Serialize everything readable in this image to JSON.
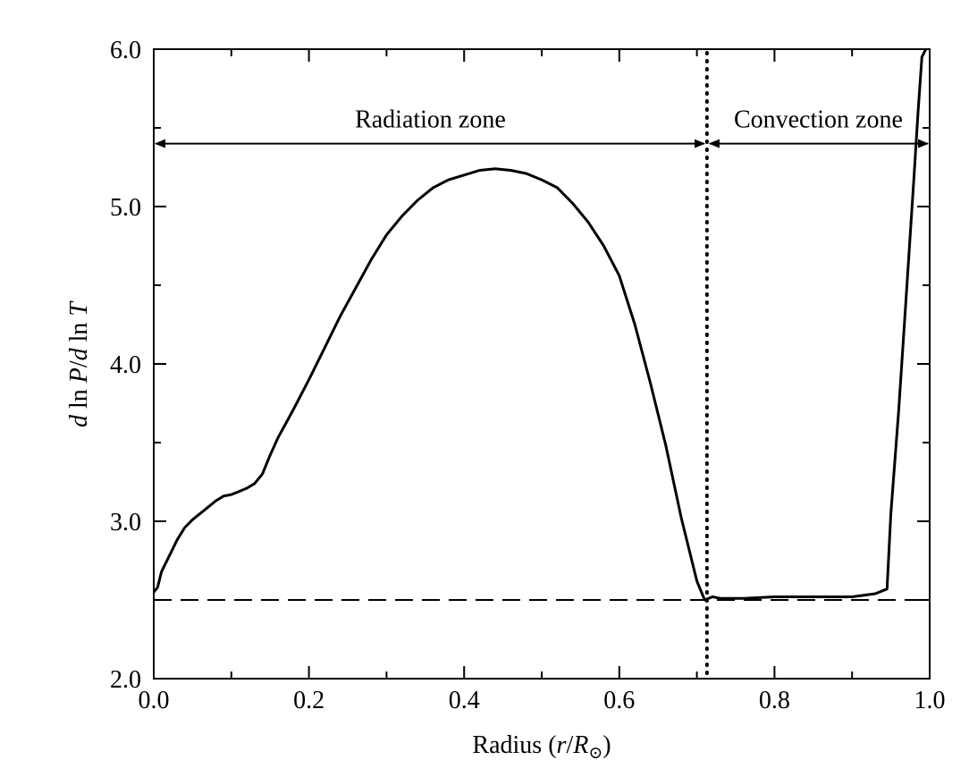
{
  "chart_data": {
    "type": "line",
    "xlabel": {
      "prefix": "Radius (",
      "var1": "r",
      "slash": "/",
      "var2": "R",
      "sub": "⊙",
      "suffix": ")"
    },
    "ylabel": {
      "d1": "d",
      "ln1": " ln ",
      "P": "P",
      "slash": "/",
      "d2": "d",
      "ln2": " ln ",
      "T": "T"
    },
    "xlim": [
      0.0,
      1.0
    ],
    "ylim": [
      2.0,
      6.0
    ],
    "xticks": [
      0.0,
      0.2,
      0.4,
      0.6,
      0.8,
      1.0
    ],
    "xtick_labels": [
      "0.0",
      "0.2",
      "0.4",
      "0.6",
      "0.8",
      "1.0"
    ],
    "yticks": [
      2.0,
      3.0,
      4.0,
      5.0,
      6.0
    ],
    "ytick_labels": [
      "2.0",
      "3.0",
      "4.0",
      "5.0",
      "6.0"
    ],
    "grid": false,
    "series": [
      {
        "x": [
          0.0,
          0.005,
          0.01,
          0.02,
          0.03,
          0.04,
          0.05,
          0.06,
          0.07,
          0.08,
          0.09,
          0.1,
          0.11,
          0.12,
          0.13,
          0.14,
          0.15,
          0.16,
          0.17,
          0.18,
          0.2,
          0.22,
          0.24,
          0.26,
          0.28,
          0.3,
          0.32,
          0.34,
          0.36,
          0.38,
          0.4,
          0.42,
          0.44,
          0.46,
          0.48,
          0.5,
          0.52,
          0.54,
          0.56,
          0.58,
          0.6,
          0.62,
          0.64,
          0.66,
          0.68,
          0.7,
          0.71,
          0.72,
          0.73,
          0.76,
          0.8,
          0.85,
          0.9,
          0.93,
          0.945,
          0.95,
          0.96,
          0.97,
          0.98,
          0.985,
          0.99,
          0.995
        ],
        "y": [
          2.55,
          2.58,
          2.68,
          2.78,
          2.88,
          2.96,
          3.01,
          3.05,
          3.09,
          3.13,
          3.16,
          3.17,
          3.19,
          3.21,
          3.24,
          3.3,
          3.42,
          3.53,
          3.62,
          3.71,
          3.9,
          4.1,
          4.3,
          4.48,
          4.66,
          4.82,
          4.94,
          5.04,
          5.12,
          5.17,
          5.2,
          5.23,
          5.24,
          5.23,
          5.21,
          5.17,
          5.12,
          5.02,
          4.9,
          4.75,
          4.56,
          4.25,
          3.88,
          3.48,
          3.02,
          2.62,
          2.5,
          2.52,
          2.51,
          2.51,
          2.52,
          2.52,
          2.52,
          2.54,
          2.57,
          3.05,
          3.7,
          4.45,
          5.2,
          5.6,
          5.95,
          6.0
        ]
      }
    ],
    "reference_lines": [
      {
        "orientation": "horizontal",
        "style": "dashed",
        "value": 2.5
      },
      {
        "orientation": "vertical",
        "style": "dotted",
        "value": 0.713
      }
    ],
    "annotations": [
      {
        "text": "Radiation zone",
        "arrow_from": 0.0,
        "arrow_to": 0.713,
        "y": 5.4
      },
      {
        "text": "Convection zone",
        "arrow_from": 0.713,
        "arrow_to": 1.0,
        "y": 5.4
      }
    ]
  }
}
